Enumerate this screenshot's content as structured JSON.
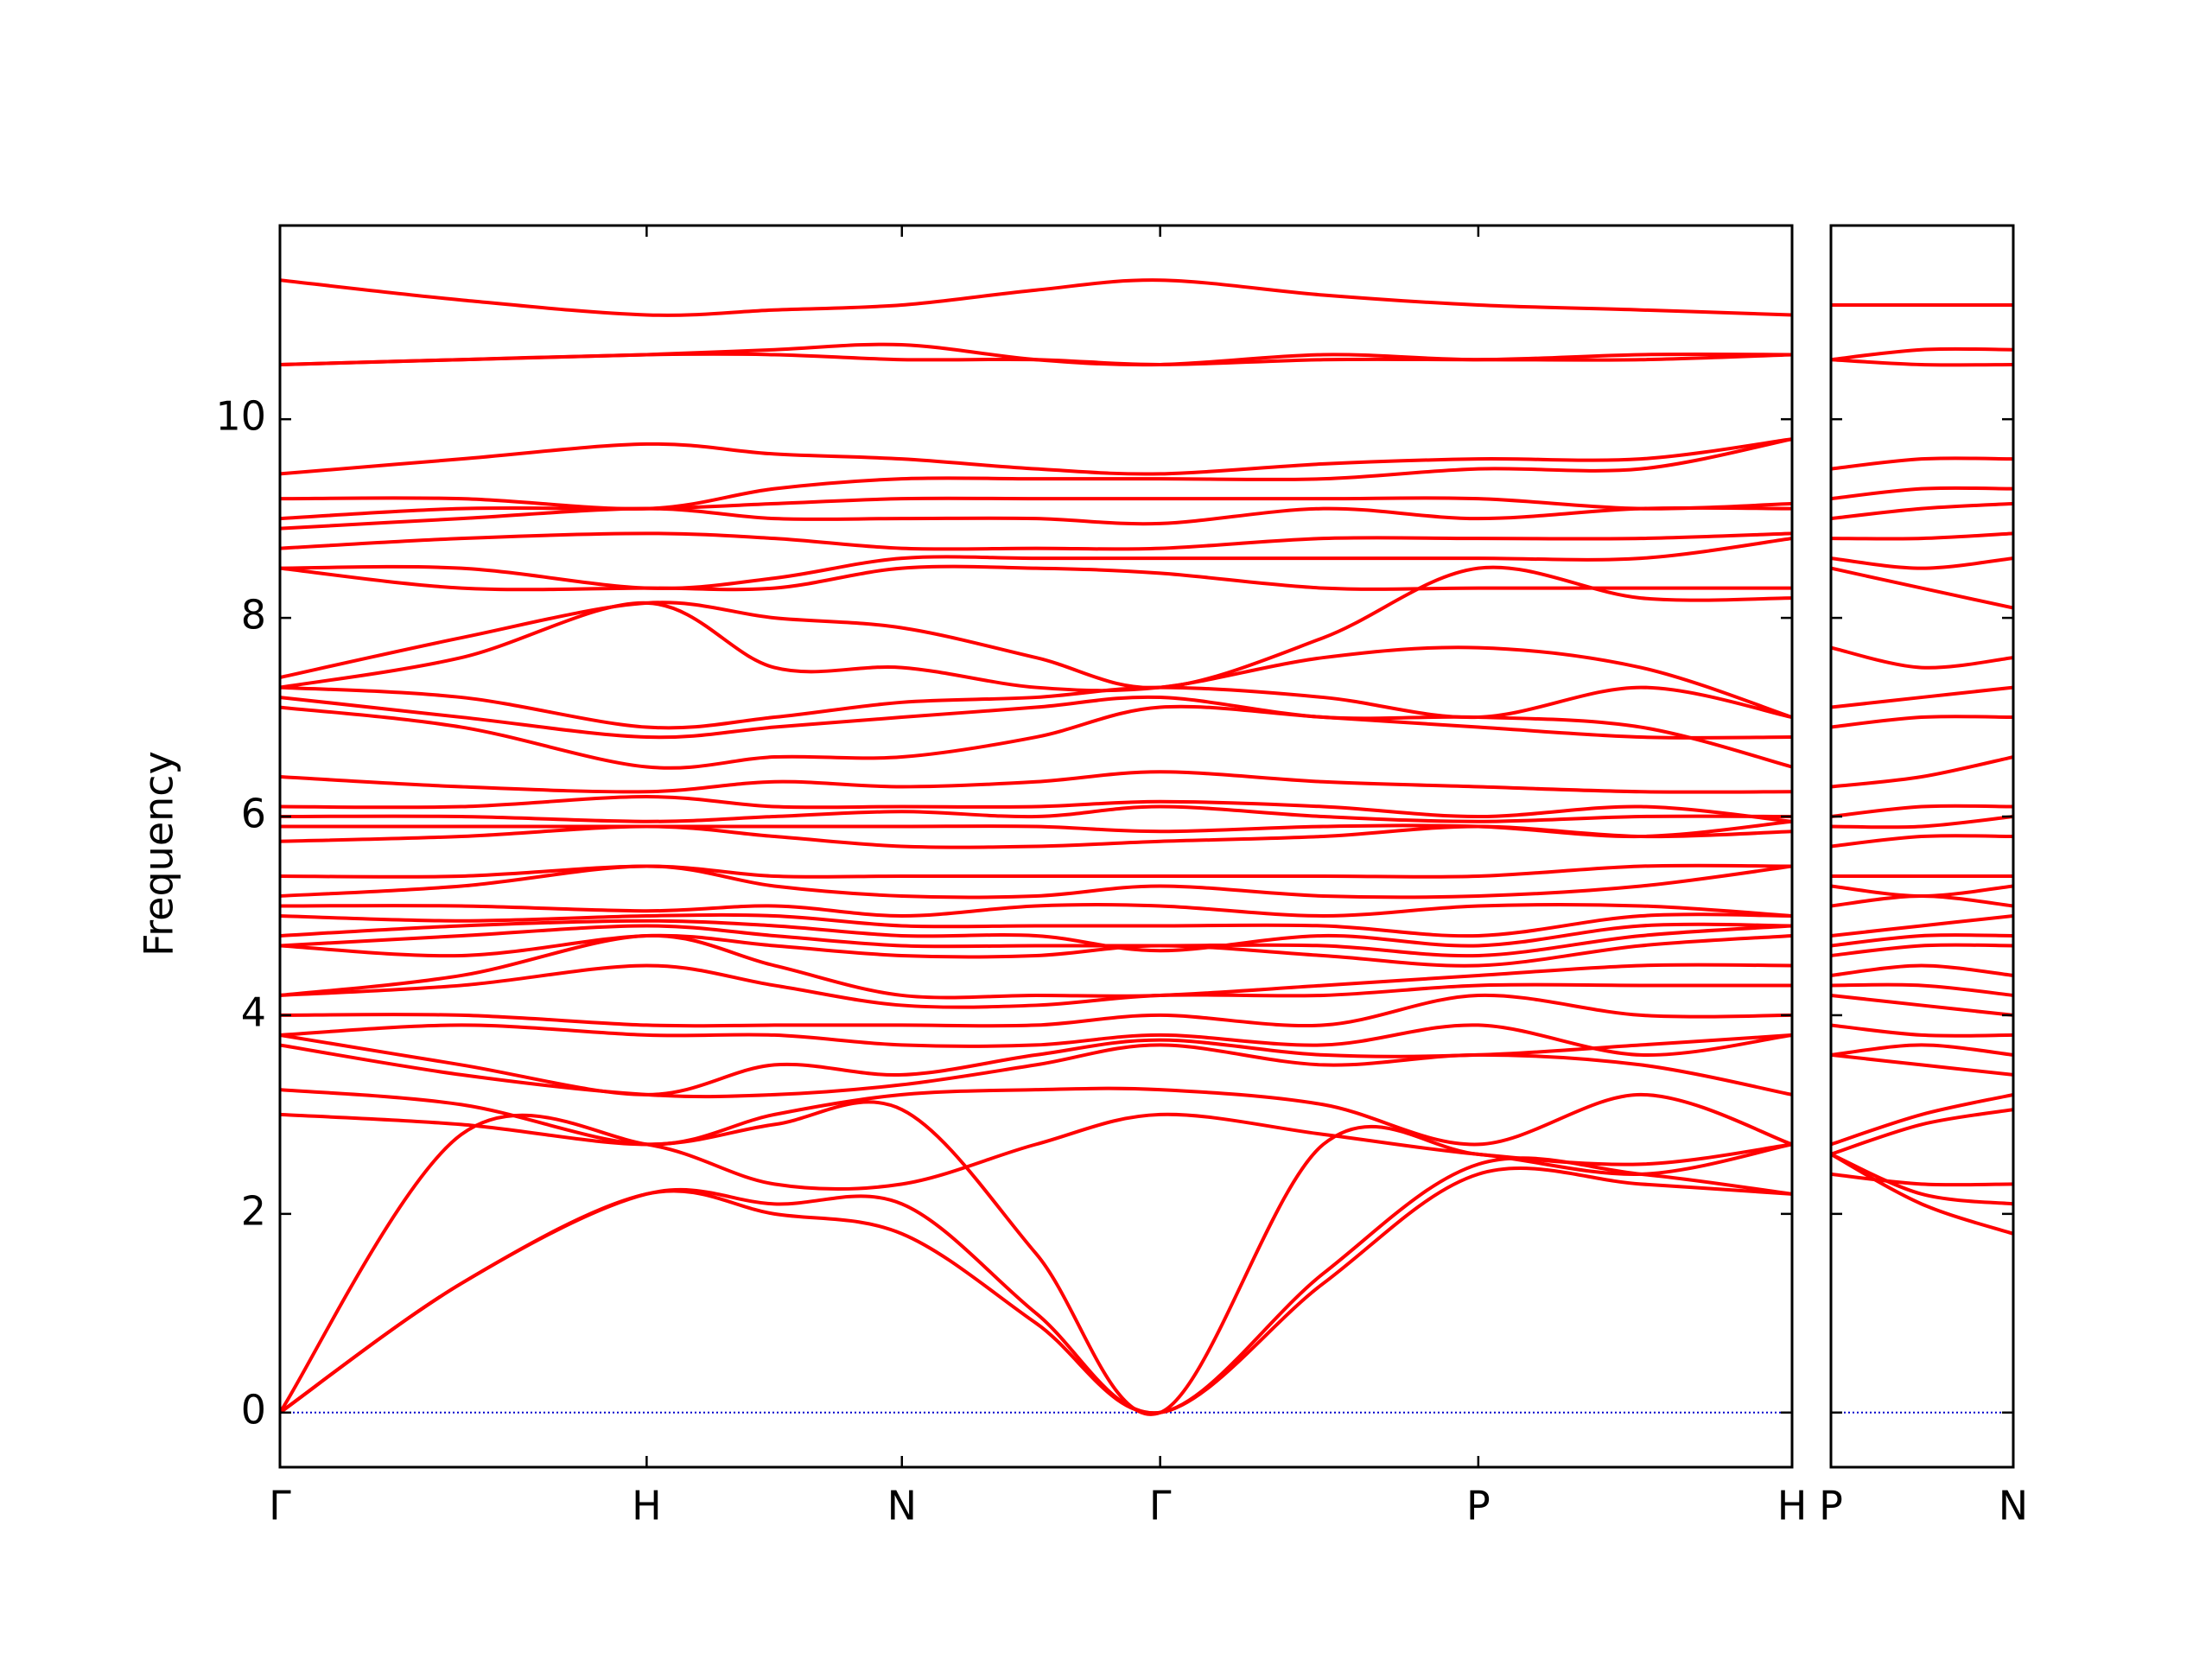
{
  "chart_data": [
    {
      "type": "line",
      "y_label": "Frequency",
      "color": "#ff0000",
      "zero_line_color": "#0000cc",
      "x": [
        0,
        0.12,
        0.2425,
        0.327,
        0.4113,
        0.5,
        0.5821,
        0.69,
        0.7925,
        0.9,
        1.0
      ],
      "xlim": [
        0,
        1.0
      ],
      "xticks": [
        {
          "value": 0,
          "label": "Γ"
        },
        {
          "value": 0.2425,
          "label": "H"
        },
        {
          "value": 0.4113,
          "label": "N"
        },
        {
          "value": 0.5821,
          "label": "Γ"
        },
        {
          "value": 0.7925,
          "label": "P"
        },
        {
          "value": 1.0,
          "label": "H"
        }
      ],
      "ylim": [
        -0.55,
        11.95
      ],
      "yticks": [
        0,
        2,
        4,
        6,
        8,
        10
      ],
      "series": [
        {
          "values": [
            0,
            1.3,
            2.2,
            2.0,
            1.8,
            0.9,
            0,
            1.3,
            2.4,
            2.3,
            2.2
          ]
        },
        {
          "values": [
            0,
            1.3,
            2.2,
            2.1,
            2.1,
            1.0,
            0,
            1.4,
            2.5,
            2.4,
            2.2
          ]
        },
        {
          "values": [
            0,
            2.8,
            2.7,
            2.3,
            2.3,
            2.7,
            3.0,
            2.8,
            2.6,
            2.5,
            2.7
          ]
        },
        {
          "values": [
            3.0,
            2.9,
            2.7,
            2.9,
            3.05,
            1.6,
            0,
            2.7,
            2.6,
            2.4,
            2.7
          ]
        },
        {
          "values": [
            3.25,
            3.1,
            2.7,
            3.0,
            3.2,
            3.25,
            3.25,
            3.1,
            2.7,
            3.2,
            2.7
          ]
        },
        {
          "values": [
            3.7,
            3.4,
            3.2,
            3.2,
            3.3,
            3.5,
            3.7,
            3.5,
            3.6,
            3.5,
            3.2
          ]
        },
        {
          "values": [
            3.8,
            3.5,
            3.2,
            3.5,
            3.4,
            3.6,
            3.75,
            3.6,
            3.6,
            3.7,
            3.8
          ]
        },
        {
          "values": [
            3.8,
            3.9,
            3.8,
            3.8,
            3.7,
            3.7,
            3.8,
            3.7,
            3.9,
            3.6,
            3.8
          ]
        },
        {
          "values": [
            4.0,
            4.0,
            3.9,
            3.9,
            3.9,
            3.9,
            4.0,
            3.9,
            4.2,
            4.0,
            4.0
          ]
        },
        {
          "values": [
            4.2,
            4.3,
            4.5,
            4.3,
            4.1,
            4.1,
            4.2,
            4.2,
            4.3,
            4.3,
            4.3
          ]
        },
        {
          "values": [
            4.2,
            4.4,
            4.8,
            4.5,
            4.2,
            4.2,
            4.2,
            4.3,
            4.4,
            4.5,
            4.5
          ]
        },
        {
          "values": [
            4.7,
            4.6,
            4.8,
            4.7,
            4.6,
            4.6,
            4.7,
            4.6,
            4.5,
            4.7,
            4.8
          ]
        },
        {
          "values": [
            4.7,
            4.8,
            4.9,
            4.8,
            4.7,
            4.7,
            4.7,
            4.7,
            4.6,
            4.8,
            4.9
          ]
        },
        {
          "values": [
            4.8,
            4.9,
            4.95,
            4.9,
            4.8,
            4.8,
            4.65,
            4.8,
            4.7,
            4.9,
            4.9
          ]
        },
        {
          "values": [
            5.0,
            4.95,
            5.0,
            5.0,
            4.9,
            4.9,
            4.9,
            4.9,
            4.8,
            5.0,
            5.0
          ]
        },
        {
          "values": [
            5.1,
            5.1,
            5.05,
            5.1,
            5.0,
            5.1,
            5.1,
            5.0,
            5.1,
            5.1,
            5.0
          ]
        },
        {
          "values": [
            5.2,
            5.3,
            5.5,
            5.3,
            5.2,
            5.2,
            5.3,
            5.2,
            5.2,
            5.3,
            5.5
          ]
        },
        {
          "values": [
            5.4,
            5.4,
            5.5,
            5.4,
            5.4,
            5.4,
            5.4,
            5.4,
            5.4,
            5.5,
            5.5
          ]
        },
        {
          "values": [
            5.75,
            5.8,
            5.9,
            5.8,
            5.7,
            5.7,
            5.75,
            5.8,
            5.9,
            5.8,
            5.85
          ]
        },
        {
          "values": [
            5.9,
            5.9,
            5.9,
            5.9,
            5.9,
            5.9,
            5.85,
            5.9,
            5.9,
            5.8,
            5.95
          ]
        },
        {
          "values": [
            6.0,
            6.0,
            5.95,
            6.0,
            6.05,
            6.0,
            6.1,
            6.0,
            5.95,
            6.0,
            6.0
          ]
        },
        {
          "values": [
            6.1,
            6.1,
            6.2,
            6.1,
            6.1,
            6.1,
            6.15,
            6.1,
            6.0,
            6.1,
            5.95
          ]
        },
        {
          "values": [
            6.4,
            6.3,
            6.25,
            6.35,
            6.3,
            6.35,
            6.45,
            6.35,
            6.3,
            6.25,
            6.25
          ]
        },
        {
          "values": [
            7.1,
            6.9,
            6.5,
            6.6,
            6.6,
            6.8,
            7.1,
            7.0,
            6.9,
            6.8,
            6.8
          ]
        },
        {
          "values": [
            7.2,
            7.0,
            6.8,
            6.9,
            7.0,
            7.1,
            7.2,
            7.0,
            7.0,
            6.9,
            6.5
          ]
        },
        {
          "values": [
            7.3,
            7.2,
            6.9,
            7.0,
            7.15,
            7.2,
            7.3,
            7.2,
            7.0,
            7.3,
            7.0
          ]
        },
        {
          "values": [
            7.3,
            7.6,
            8.15,
            7.5,
            7.5,
            7.3,
            7.3,
            7.6,
            7.7,
            7.5,
            7.0
          ]
        },
        {
          "values": [
            7.4,
            7.8,
            8.15,
            8.0,
            7.9,
            7.6,
            7.3,
            7.8,
            8.5,
            8.2,
            8.2
          ]
        },
        {
          "values": [
            8.5,
            8.3,
            8.3,
            8.3,
            8.5,
            8.5,
            8.45,
            8.3,
            8.3,
            8.3,
            8.3
          ]
        },
        {
          "values": [
            8.5,
            8.5,
            8.3,
            8.4,
            8.6,
            8.6,
            8.6,
            8.6,
            8.6,
            8.6,
            8.8
          ]
        },
        {
          "values": [
            8.7,
            8.8,
            8.85,
            8.8,
            8.7,
            8.7,
            8.7,
            8.8,
            8.8,
            8.8,
            8.85
          ]
        },
        {
          "values": [
            8.9,
            9.0,
            9.1,
            9.0,
            9.0,
            9.0,
            8.95,
            9.1,
            9.0,
            9.1,
            9.1
          ]
        },
        {
          "values": [
            9.0,
            9.1,
            9.1,
            9.15,
            9.2,
            9.2,
            9.2,
            9.2,
            9.2,
            9.1,
            9.15
          ]
        },
        {
          "values": [
            9.2,
            9.2,
            9.1,
            9.3,
            9.4,
            9.4,
            9.4,
            9.4,
            9.5,
            9.5,
            9.8
          ]
        },
        {
          "values": [
            9.45,
            9.6,
            9.75,
            9.65,
            9.6,
            9.5,
            9.45,
            9.55,
            9.6,
            9.6,
            9.8
          ]
        },
        {
          "values": [
            10.55,
            10.6,
            10.65,
            10.65,
            10.6,
            10.6,
            10.55,
            10.6,
            10.6,
            10.6,
            10.65
          ]
        },
        {
          "values": [
            10.55,
            10.6,
            10.65,
            10.7,
            10.75,
            10.6,
            10.55,
            10.65,
            10.6,
            10.65,
            10.65
          ]
        },
        {
          "values": [
            11.4,
            11.2,
            11.05,
            11.1,
            11.15,
            11.3,
            11.4,
            11.25,
            11.15,
            11.1,
            11.05
          ]
        }
      ]
    },
    {
      "type": "line",
      "color": "#ff0000",
      "zero_line_color": "#0000cc",
      "x": [
        0,
        0.06,
        0.1208
      ],
      "xlim": [
        0,
        0.1208
      ],
      "xticks": [
        {
          "value": 0,
          "label": "P"
        },
        {
          "value": 0.1208,
          "label": "N"
        }
      ],
      "ylim": [
        -0.55,
        11.95
      ],
      "series": [
        {
          "values": [
            2.6,
            2.1,
            1.8
          ]
        },
        {
          "values": [
            2.6,
            2.2,
            2.1
          ]
        },
        {
          "values": [
            2.4,
            2.3,
            2.3
          ]
        },
        {
          "values": [
            2.6,
            2.9,
            3.05
          ]
        },
        {
          "values": [
            2.7,
            3.0,
            3.2
          ]
        },
        {
          "values": [
            3.6,
            3.5,
            3.4
          ]
        },
        {
          "values": [
            3.6,
            3.7,
            3.6
          ]
        },
        {
          "values": [
            3.9,
            3.8,
            3.8
          ]
        },
        {
          "values": [
            4.2,
            4.1,
            4.0
          ]
        },
        {
          "values": [
            4.3,
            4.3,
            4.2
          ]
        },
        {
          "values": [
            4.4,
            4.5,
            4.4
          ]
        },
        {
          "values": [
            4.6,
            4.7,
            4.7
          ]
        },
        {
          "values": [
            4.7,
            4.8,
            4.8
          ]
        },
        {
          "values": [
            4.8,
            4.9,
            5.0
          ]
        },
        {
          "values": [
            5.1,
            5.2,
            5.1
          ]
        },
        {
          "values": [
            5.3,
            5.2,
            5.3
          ]
        },
        {
          "values": [
            5.4,
            5.4,
            5.4
          ]
        },
        {
          "values": [
            5.7,
            5.8,
            5.8
          ]
        },
        {
          "values": [
            5.9,
            5.9,
            6.0
          ]
        },
        {
          "values": [
            6.0,
            6.1,
            6.1
          ]
        },
        {
          "values": [
            6.3,
            6.4,
            6.6
          ]
        },
        {
          "values": [
            6.9,
            7.0,
            7.0
          ]
        },
        {
          "values": [
            7.1,
            7.2,
            7.3
          ]
        },
        {
          "values": [
            7.7,
            7.5,
            7.6
          ]
        },
        {
          "values": [
            8.5,
            8.3,
            8.1
          ]
        },
        {
          "values": [
            8.6,
            8.5,
            8.6
          ]
        },
        {
          "values": [
            8.8,
            8.8,
            8.85
          ]
        },
        {
          "values": [
            9.0,
            9.1,
            9.15
          ]
        },
        {
          "values": [
            9.2,
            9.3,
            9.3
          ]
        },
        {
          "values": [
            9.5,
            9.6,
            9.6
          ]
        },
        {
          "values": [
            10.6,
            10.55,
            10.55
          ]
        },
        {
          "values": [
            10.6,
            10.7,
            10.7
          ]
        },
        {
          "values": [
            11.15,
            11.15,
            11.15
          ]
        }
      ]
    }
  ]
}
